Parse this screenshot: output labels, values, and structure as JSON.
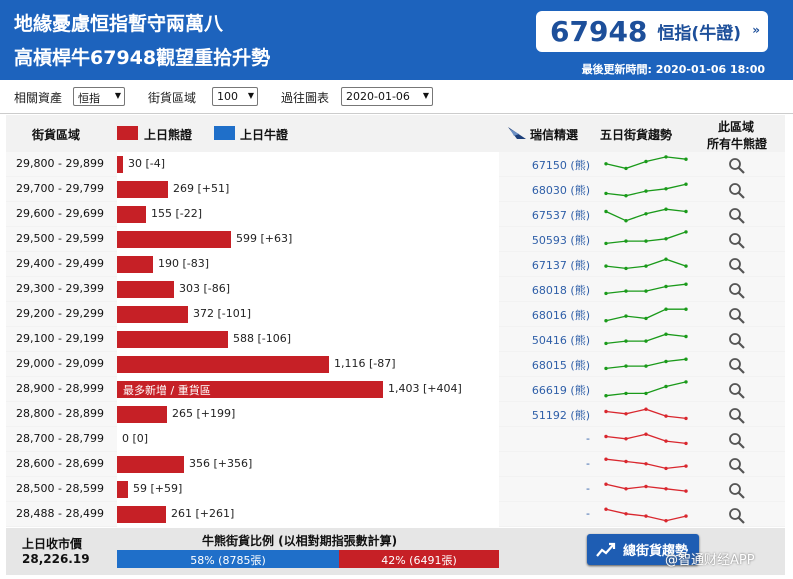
{
  "header": {
    "title_line1": "地緣憂慮恒指暫守兩萬八",
    "title_line2": "高槓桿牛67948觀望重拾升勢",
    "code_box": {
      "code": "67948",
      "name": "恒指",
      "type": "牛證",
      "arrow": "»"
    },
    "updated": "最後更新時間: 2020-01-06 18:00"
  },
  "filters": {
    "asset_label": "相關資產",
    "asset_value": "恒指",
    "zone_label": "街貨區域",
    "zone_value": "100",
    "history_label": "過往圖表",
    "history_value": "2020-01-06"
  },
  "table_header": {
    "col_zone": "街貨區域",
    "legend_bear": "上日熊證",
    "legend_bull": "上日牛證",
    "col_pick": "瑞信精選",
    "col_trend": "五日街貨趨勢",
    "col_all_line1": "此區域",
    "col_all_line2": "所有牛熊證"
  },
  "colors": {
    "header_blue": "#1d63bd",
    "bear_red": "#c62026",
    "bull_blue": "#1f6fc9",
    "spark_green": "#1a9a1a",
    "spark_red": "#d9272e"
  },
  "rows": [
    {
      "range": "29,800 - 29,899",
      "value": 30,
      "label": "30 [-4]",
      "inner": "",
      "code": "67150 (熊)",
      "trend": [
        4,
        2,
        5,
        7,
        6
      ],
      "spark": "green"
    },
    {
      "range": "29,700 - 29,799",
      "value": 269,
      "label": "269 [+51]",
      "inner": "",
      "code": "68030 (熊)",
      "trend": [
        2,
        1,
        3,
        4,
        6
      ],
      "spark": "green"
    },
    {
      "range": "29,600 - 29,699",
      "value": 155,
      "label": "155 [-22]",
      "inner": "",
      "code": "67537 (熊)",
      "trend": [
        5,
        1,
        4,
        6,
        5
      ],
      "spark": "green"
    },
    {
      "range": "29,500 - 29,599",
      "value": 599,
      "label": "599 [+63]",
      "inner": "",
      "code": "50593 (熊)",
      "trend": [
        2,
        3,
        3,
        4,
        7
      ],
      "spark": "green"
    },
    {
      "range": "29,400 - 29,499",
      "value": 190,
      "label": "190 [-83]",
      "inner": "",
      "code": "67137 (熊)",
      "trend": [
        3,
        2,
        3,
        6,
        3
      ],
      "spark": "green"
    },
    {
      "range": "29,300 - 29,399",
      "value": 303,
      "label": "303 [-86]",
      "inner": "",
      "code": "68018 (熊)",
      "trend": [
        2,
        3,
        3,
        5,
        6
      ],
      "spark": "green"
    },
    {
      "range": "29,200 - 29,299",
      "value": 372,
      "label": "372 [-101]",
      "inner": "",
      "code": "68016 (熊)",
      "trend": [
        1,
        3,
        2,
        6,
        6
      ],
      "spark": "green"
    },
    {
      "range": "29,100 - 29,199",
      "value": 588,
      "label": "588 [-106]",
      "inner": "",
      "code": "50416 (熊)",
      "trend": [
        2,
        3,
        3,
        6,
        5
      ],
      "spark": "green"
    },
    {
      "range": "29,000 - 29,099",
      "value": 1116,
      "label": "1,116 [-87]",
      "inner": "",
      "code": "68015 (熊)",
      "trend": [
        2,
        3,
        3,
        5,
        6
      ],
      "spark": "green"
    },
    {
      "range": "28,900 - 28,999",
      "value": 1403,
      "label": "1,403 [+404]",
      "inner": "最多新增 / 重貨區",
      "code": "66619 (熊)",
      "trend": [
        1,
        2,
        2,
        5,
        7
      ],
      "spark": "green"
    },
    {
      "range": "28,800 - 28,899",
      "value": 265,
      "label": "265 [+199]",
      "inner": "",
      "code": "51192 (熊)",
      "trend": [
        5,
        4,
        6,
        3,
        2
      ],
      "spark": "red"
    },
    {
      "range": "28,700 - 28,799",
      "value": 0,
      "label": "0 [0]",
      "inner": "",
      "code": "-",
      "trend": [
        5,
        4,
        6,
        3,
        2
      ],
      "spark": "red"
    },
    {
      "range": "28,600 - 28,699",
      "value": 356,
      "label": "356 [+356]",
      "inner": "",
      "code": "-",
      "trend": [
        6,
        5,
        4,
        2,
        3
      ],
      "spark": "red"
    },
    {
      "range": "28,500 - 28,599",
      "value": 59,
      "label": "59 [+59]",
      "inner": "",
      "code": "-",
      "trend": [
        6,
        4,
        5,
        4,
        3
      ],
      "spark": "red"
    },
    {
      "range": "28,488 - 28,499",
      "value": 261,
      "label": "261 [+261]",
      "inner": "",
      "code": "-",
      "trend": [
        6,
        4,
        3,
        1,
        3
      ],
      "spark": "red"
    }
  ],
  "footer": {
    "prev_close_label": "上日收市價",
    "prev_close_value": "28,226.19",
    "ratio_label": "牛熊街貨比例 (以相對期指張數計算)",
    "bull_pct": 58,
    "bull_text": "58% (8785張)",
    "bear_text": "42% (6491張)",
    "trend_button": "總街貨趨勢"
  },
  "watermark": "@智通财经APP"
}
